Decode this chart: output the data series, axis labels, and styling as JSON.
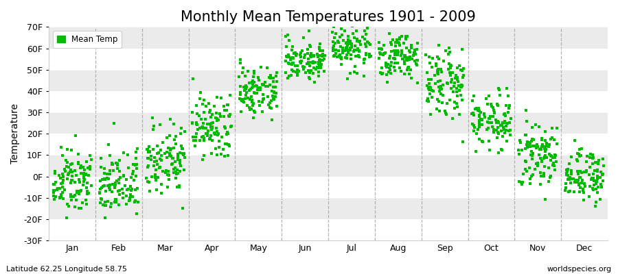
{
  "title": "Monthly Mean Temperatures 1901 - 2009",
  "ylabel": "Temperature",
  "xlabel_bottom_left": "Latitude 62.25 Longitude 58.75",
  "xlabel_bottom_right": "worldspecies.org",
  "legend_label": "Mean Temp",
  "ylim": [
    -30,
    70
  ],
  "yticks": [
    -30,
    -20,
    -10,
    0,
    10,
    20,
    30,
    40,
    50,
    60,
    70
  ],
  "ytick_labels": [
    "-30F",
    "-20F",
    "-10F",
    "0F",
    "10F",
    "20F",
    "30F",
    "40F",
    "50F",
    "60F",
    "70F"
  ],
  "months": [
    "Jan",
    "Feb",
    "Mar",
    "Apr",
    "May",
    "Jun",
    "Jul",
    "Aug",
    "Sep",
    "Oct",
    "Nov",
    "Dec"
  ],
  "dot_color": "#00bb00",
  "background_color": "#ffffff",
  "band_color_white": "#ffffff",
  "band_color_gray": "#ebebeb",
  "mean_temps_F": [
    -4,
    -5,
    7,
    22,
    38,
    54,
    59,
    55,
    42,
    25,
    10,
    -1
  ],
  "spread_F": [
    7,
    7,
    8,
    8,
    7,
    5,
    5,
    5,
    7,
    7,
    7,
    7
  ],
  "n_years": 109,
  "title_fontsize": 15,
  "axis_label_fontsize": 10,
  "tick_fontsize": 9,
  "dot_size": 7,
  "dot_marker": "s"
}
